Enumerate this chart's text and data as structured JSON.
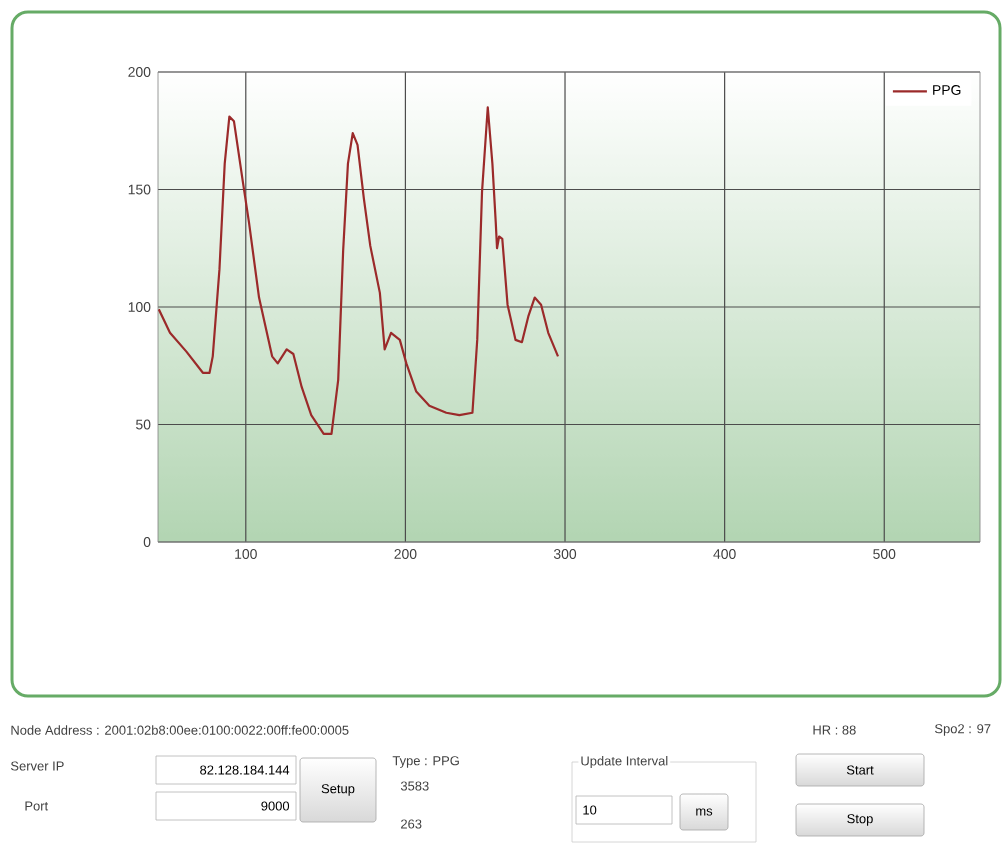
{
  "chart_data": {
    "type": "line",
    "x": [
      45.5,
      52.5,
      62.8,
      73.1,
      77.3,
      79.3,
      83.5,
      86.8,
      89.7,
      92.6,
      98,
      102,
      108.3,
      116.5,
      120,
      125.6,
      129.8,
      135,
      141,
      148.8,
      153.7,
      157.9,
      161,
      164,
      167,
      170,
      174,
      178,
      184,
      187,
      191,
      196.5,
      200.6,
      206.8,
      215,
      225.6,
      233.8,
      242,
      245,
      248,
      251.6,
      254.5,
      256.6,
      257.4,
      258.7,
      260.7,
      264,
      269,
      273,
      277,
      281,
      285,
      289.5,
      295.6
    ],
    "series": [
      {
        "name": "PPG",
        "color": "#9b2a2a",
        "values": [
          99,
          89,
          81,
          72,
          72,
          79,
          116,
          161,
          181,
          179,
          154,
          136,
          104,
          79,
          76,
          82,
          80,
          66,
          54,
          46,
          46,
          69,
          124,
          161,
          174,
          169,
          146,
          126,
          106,
          82,
          89,
          86,
          76,
          64,
          58,
          55,
          54,
          55,
          86,
          149,
          185,
          161,
          136,
          125,
          130,
          129,
          101,
          86,
          85,
          96,
          104,
          101,
          89,
          79
        ]
      }
    ],
    "xlim": [
      45,
      560
    ],
    "ylim": [
      0,
      200
    ],
    "xticks": [
      100,
      200,
      300,
      400,
      500
    ],
    "yticks": [
      0,
      50,
      100,
      150,
      200
    ],
    "grid": true,
    "legend": "top right",
    "marker": "none",
    "line_style": "solid",
    "annotations": [
      "Node Address : 2001:02b8:00ee:0100:0022:00ff:fe00:0005",
      "HR : 88",
      "Spo2 : 97",
      "Server IP",
      "82.128.184.144",
      "Setup",
      "Type : PPG",
      "Update Interval",
      "Start",
      "3583",
      "Port",
      "9000",
      "263",
      "10",
      "ms",
      "Stop"
    ]
  }
}
